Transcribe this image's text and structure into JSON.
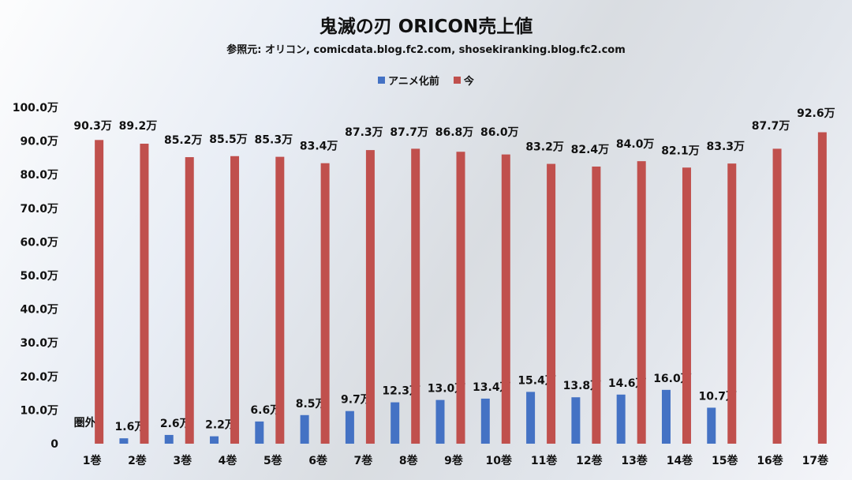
{
  "chart_data": {
    "type": "bar",
    "title": "鬼滅の刃 ORICON売上値",
    "subtitle": "参照元: オリコン, comicdata.blog.fc2.com, shosekiranking.blog.fc2.com",
    "categories": [
      "1巻",
      "2巻",
      "3巻",
      "4巻",
      "5巻",
      "6巻",
      "7巻",
      "8巻",
      "9巻",
      "10巻",
      "11巻",
      "12巻",
      "13巻",
      "14巻",
      "15巻",
      "16巻",
      "17巻"
    ],
    "series": [
      {
        "name": "アニメ化前",
        "color": "#4472c4",
        "values": [
          null,
          1.6,
          2.6,
          2.2,
          6.6,
          8.5,
          9.7,
          12.3,
          13.0,
          13.4,
          15.4,
          13.8,
          14.6,
          16.0,
          10.7,
          null,
          null
        ],
        "labels": [
          "圏外",
          "1.6万",
          "2.6万",
          "2.2万",
          "6.6万",
          "8.5万",
          "9.7万",
          "12.3万",
          "13.0万",
          "13.4万",
          "15.4万",
          "13.8万",
          "14.6万",
          "16.0万",
          "10.7万",
          "",
          ""
        ]
      },
      {
        "name": "今",
        "color": "#c0504d",
        "values": [
          90.3,
          89.2,
          85.2,
          85.5,
          85.3,
          83.4,
          87.3,
          87.7,
          86.8,
          86.0,
          83.2,
          82.4,
          84.0,
          82.1,
          83.3,
          87.7,
          92.6
        ],
        "labels": [
          "90.3万",
          "89.2万",
          "85.2万",
          "85.5万",
          "85.3万",
          "83.4万",
          "87.3万",
          "87.7万",
          "86.8万",
          "86.0万",
          "83.2万",
          "82.4万",
          "84.0万",
          "82.1万",
          "83.3万",
          "87.7万",
          "92.6万"
        ]
      }
    ],
    "ylim": [
      0,
      100
    ],
    "yticks": [
      "0",
      "10.0万",
      "20.0万",
      "30.0万",
      "40.0万",
      "50.0万",
      "60.0万",
      "70.0万",
      "80.0万",
      "90.0万",
      "100.0万"
    ],
    "grid": false,
    "legend_position": "top-center"
  }
}
